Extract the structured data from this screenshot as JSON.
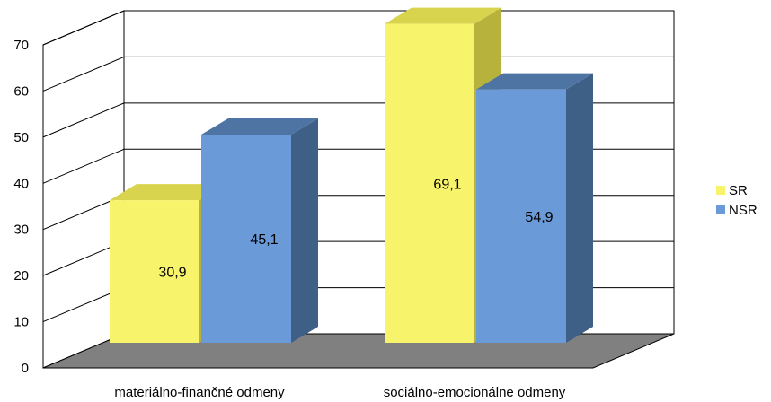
{
  "chart_data": {
    "type": "bar",
    "categories": [
      "materiálno-finančné odmeny",
      "sociálno-emocionálne odmeny"
    ],
    "series": [
      {
        "name": "SR",
        "values": [
          30.9,
          69.1
        ],
        "labels": [
          "30,9",
          "69,1"
        ],
        "color": "#f7f36a",
        "side_color": "#b7b23c",
        "top_color": "#d9d44d"
      },
      {
        "name": "NSR",
        "values": [
          45.1,
          54.9
        ],
        "labels": [
          "45,1",
          "54,9"
        ],
        "color": "#6a9bd8",
        "side_color": "#3e5f86",
        "top_color": "#4e74a4"
      }
    ],
    "ylim": [
      0,
      70
    ],
    "yticks": [
      "0",
      "10",
      "20",
      "30",
      "40",
      "50",
      "60",
      "70"
    ],
    "grid": true,
    "legend_position": "right",
    "wall_color": "#ffffff",
    "floor_color": "#808080"
  }
}
